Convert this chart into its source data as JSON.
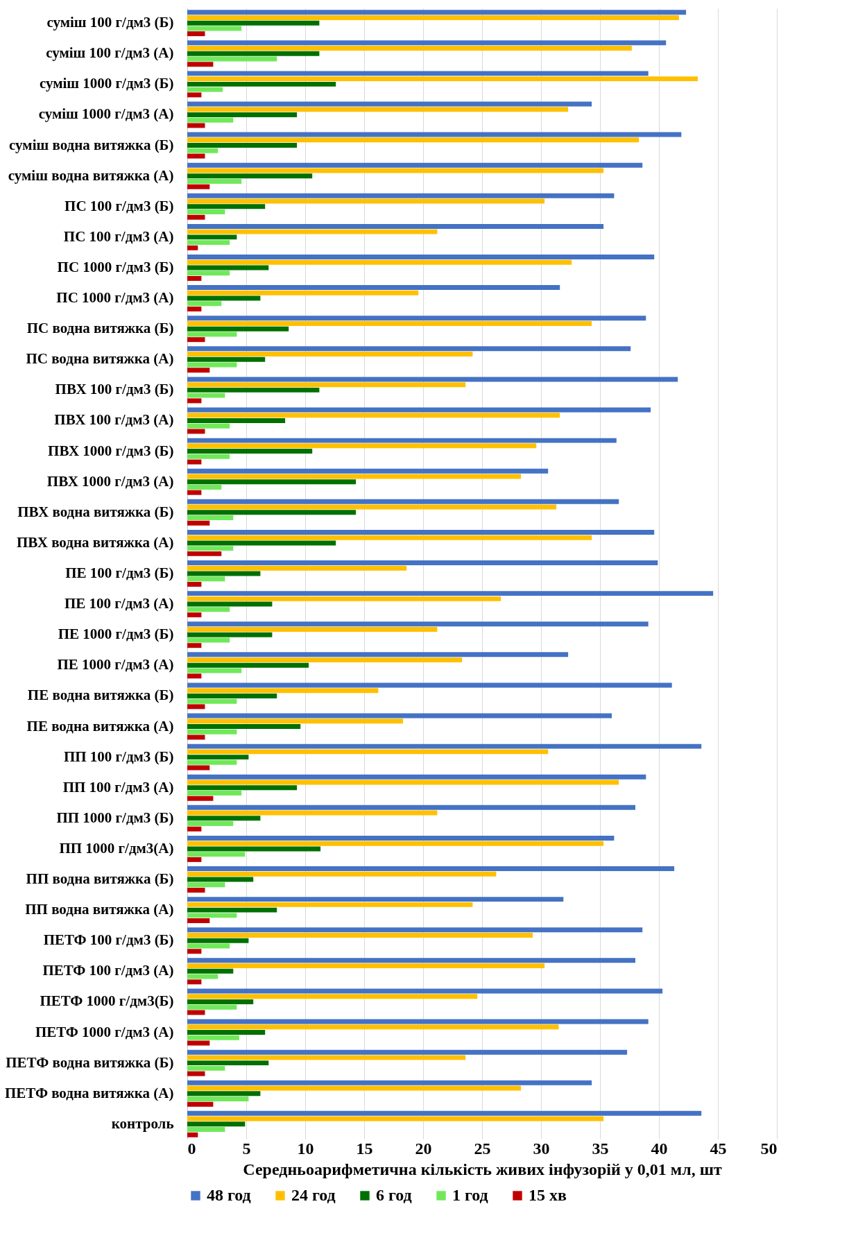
{
  "chart_data": {
    "type": "bar",
    "orientation": "horizontal",
    "xlabel": "Середньоарифметична  кількість живих інфузорій у 0,01 мл, шт",
    "categories": [
      "суміш 100 г/дм3 (Б)",
      "суміш 100 г/дм3 (А)",
      "суміш 1000 г/дм3 (Б)",
      "суміш 1000 г/дм3 (А)",
      "суміш водна витяжка (Б)",
      "суміш водна витяжка (А)",
      "ПС 100 г/дм3 (Б)",
      "ПС 100 г/дм3 (А)",
      "ПС 1000 г/дм3 (Б)",
      "ПС 1000 г/дм3 (А)",
      "ПС водна витяжка (Б)",
      "ПС водна витяжка (А)",
      "ПВХ 100 г/дм3 (Б)",
      "ПВХ 100 г/дм3 (А)",
      "ПВХ 1000 г/дм3 (Б)",
      "ПВХ 1000 г/дм3 (А)",
      "ПВХ водна витяжка (Б)",
      "ПВХ водна витяжка (А)",
      "ПЕ 100 г/дм3 (Б)",
      "ПЕ 100 г/дм3 (А)",
      "ПЕ 1000 г/дм3 (Б)",
      "ПЕ 1000 г/дм3 (А)",
      "ПЕ водна витяжка (Б)",
      "ПЕ водна витяжка (А)",
      "ПП 100 г/дм3 (Б)",
      "ПП 100 г/дм3 (А)",
      "ПП 1000 г/дм3 (Б)",
      "ПП 1000  г/дм3(А)",
      "ПП водна витяжка (Б)",
      "ПП водна витяжка (А)",
      "ПЕТФ 100 г/дм3 (Б)",
      "ПЕТФ 100 г/дм3 (А)",
      "ПЕТФ 1000  г/дм3(Б)",
      "ПЕТФ 1000 г/дм3 (А)",
      "ПЕТФ водна витяжка (Б)",
      "ПЕТФ водна витяжка (А)",
      "контроль"
    ],
    "series": [
      {
        "name": "48 год",
        "color": "#4472c4",
        "values": [
          42.3,
          40.6,
          39.1,
          34.3,
          41.9,
          38.6,
          36.2,
          35.3,
          39.6,
          31.6,
          38.9,
          37.6,
          41.6,
          39.3,
          36.4,
          30.6,
          36.6,
          39.6,
          39.9,
          44.6,
          39.1,
          32.3,
          41.1,
          36.0,
          43.6,
          38.9,
          38.0,
          36.2,
          41.3,
          31.9,
          38.6,
          38.0,
          40.3,
          39.1,
          37.3,
          34.3,
          43.6
        ]
      },
      {
        "name": "24 год",
        "color": "#ffc000",
        "values": [
          41.7,
          37.7,
          43.3,
          32.3,
          38.3,
          35.3,
          30.3,
          21.2,
          32.6,
          19.6,
          34.3,
          24.2,
          23.6,
          31.6,
          29.6,
          28.3,
          31.3,
          34.3,
          18.6,
          26.6,
          21.2,
          23.3,
          16.2,
          18.3,
          30.6,
          36.6,
          21.2,
          35.3,
          26.2,
          24.2,
          29.3,
          30.3,
          24.6,
          31.5,
          23.6,
          28.3,
          35.3
        ]
      },
      {
        "name": "6 год",
        "color": "#007000",
        "values": [
          11.2,
          11.2,
          12.6,
          9.3,
          9.3,
          10.6,
          6.6,
          4.2,
          6.9,
          6.2,
          8.6,
          6.6,
          11.2,
          8.3,
          10.6,
          14.3,
          14.3,
          12.6,
          6.2,
          7.2,
          7.2,
          10.3,
          7.6,
          9.6,
          5.2,
          9.3,
          6.2,
          11.3,
          5.6,
          7.6,
          5.2,
          3.9,
          5.6,
          6.6,
          6.9,
          6.2,
          4.9
        ]
      },
      {
        "name": "1 год",
        "color": "#70e85a",
        "values": [
          4.6,
          7.6,
          3.0,
          3.9,
          2.6,
          4.6,
          3.2,
          3.6,
          3.6,
          2.9,
          4.2,
          4.2,
          3.2,
          3.6,
          3.6,
          2.9,
          3.9,
          3.9,
          3.2,
          3.6,
          3.6,
          4.6,
          4.2,
          4.2,
          4.2,
          4.6,
          3.9,
          4.9,
          3.2,
          4.2,
          3.6,
          2.6,
          4.2,
          4.4,
          3.2,
          5.2,
          3.2
        ]
      },
      {
        "name": "15 хв",
        "color": "#c00000",
        "values": [
          1.5,
          2.2,
          1.2,
          1.5,
          1.5,
          1.9,
          1.5,
          0.9,
          1.2,
          1.2,
          1.5,
          1.9,
          1.2,
          1.5,
          1.2,
          1.2,
          1.9,
          2.9,
          1.2,
          1.2,
          1.2,
          1.2,
          1.5,
          1.5,
          1.9,
          2.2,
          1.2,
          1.2,
          1.5,
          1.9,
          1.2,
          1.2,
          1.5,
          1.9,
          1.5,
          2.2,
          0.9
        ]
      }
    ],
    "xlim": [
      0,
      50
    ],
    "xticks": [
      0,
      5,
      10,
      15,
      20,
      25,
      30,
      35,
      40,
      45,
      50
    ],
    "grid": "x",
    "legend": "bottom"
  }
}
